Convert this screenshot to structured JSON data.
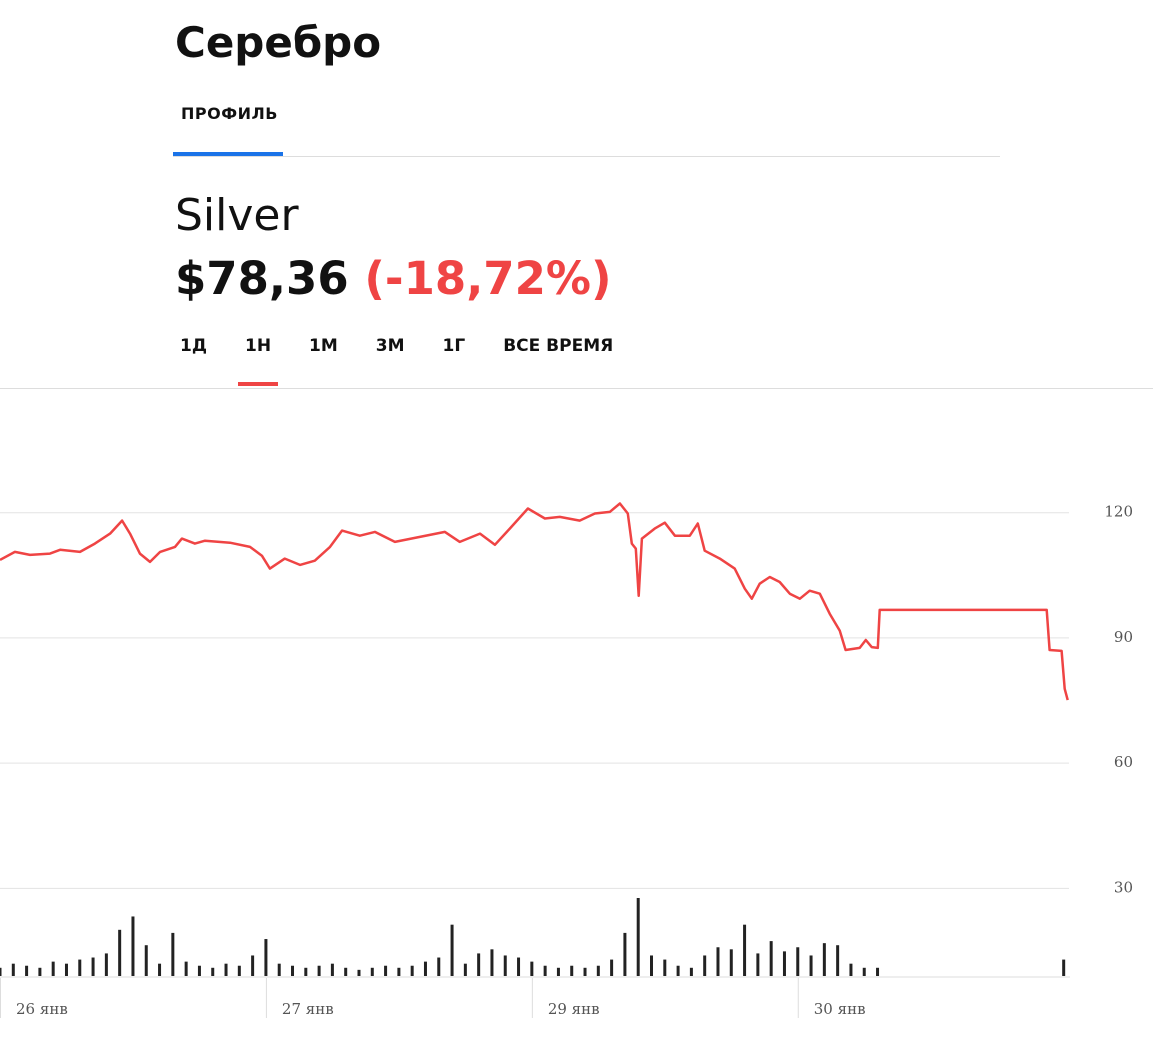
{
  "header": {
    "title": "Серебро",
    "tabs": [
      "ПРОФИЛЬ"
    ]
  },
  "asset": {
    "name": "Silver",
    "price": "$78,36",
    "change": "(-18,72%)"
  },
  "ranges": {
    "items": [
      "1Д",
      "1Н",
      "1М",
      "3М",
      "1Г",
      "ВСЕ ВРЕМЯ"
    ],
    "active": 1
  },
  "chart_data": {
    "type": "line",
    "color": "#ef4444",
    "grid": true,
    "xlim": [
      0,
      4.02
    ],
    "ylim": [
      9,
      147
    ],
    "yticks": [
      30,
      60,
      90,
      120
    ],
    "xticks": [
      {
        "value": 0,
        "label": "26 янв"
      },
      {
        "value": 1,
        "label": "27 янв"
      },
      {
        "value": 2,
        "label": "29 янв"
      },
      {
        "value": 3,
        "label": "30 янв"
      }
    ],
    "x": [
      0,
      0.056,
      0.113,
      0.188,
      0.226,
      0.301,
      0.357,
      0.414,
      0.459,
      0.489,
      0.526,
      0.564,
      0.602,
      0.658,
      0.684,
      0.733,
      0.771,
      0.865,
      0.94,
      0.985,
      1.015,
      1.071,
      1.128,
      1.184,
      1.241,
      1.286,
      1.353,
      1.41,
      1.485,
      1.579,
      1.673,
      1.729,
      1.805,
      1.861,
      1.917,
      1.985,
      2.049,
      2.105,
      2.18,
      2.237,
      2.293,
      2.331,
      2.361,
      2.376,
      2.391,
      2.402,
      2.414,
      2.462,
      2.5,
      2.538,
      2.594,
      2.624,
      2.65,
      2.707,
      2.763,
      2.801,
      2.827,
      2.857,
      2.895,
      2.932,
      2.97,
      3.008,
      3.045,
      3.083,
      3.12,
      3.158,
      3.18,
      3.233,
      3.256,
      3.278,
      3.301,
      3.308,
      3.936,
      3.947,
      3.992,
      4.004,
      4.015
    ],
    "values": [
      108.7,
      110.6,
      109.9,
      110.2,
      111.1,
      110.6,
      112.6,
      115.0,
      118.1,
      115.0,
      110.2,
      108.2,
      110.6,
      111.8,
      113.8,
      112.6,
      113.3,
      112.8,
      111.8,
      109.7,
      106.6,
      109.0,
      107.5,
      108.5,
      111.8,
      115.7,
      114.5,
      115.4,
      113.0,
      114.2,
      115.4,
      113.0,
      115.0,
      112.3,
      116.2,
      121.0,
      118.6,
      119.0,
      118.1,
      119.8,
      120.2,
      122.2,
      119.8,
      112.6,
      111.4,
      100.1,
      113.8,
      116.2,
      117.6,
      114.5,
      114.5,
      117.4,
      110.9,
      109.0,
      106.6,
      101.8,
      99.4,
      103.0,
      104.6,
      103.4,
      100.6,
      99.4,
      101.3,
      100.6,
      95.8,
      91.7,
      87.1,
      87.6,
      89.5,
      87.8,
      87.6,
      96.7,
      96.7,
      87.1,
      86.9,
      77.8,
      75.1
    ],
    "volume_color": "#222",
    "volume": {
      "x": [
        0,
        0.05,
        0.1,
        0.15,
        0.2,
        0.25,
        0.3,
        0.35,
        0.4,
        0.45,
        0.5,
        0.55,
        0.6,
        0.65,
        0.7,
        0.75,
        0.8,
        0.85,
        0.9,
        0.95,
        1,
        1.05,
        1.1,
        1.15,
        1.2,
        1.25,
        1.3,
        1.35,
        1.4,
        1.45,
        1.5,
        1.55,
        1.6,
        1.65,
        1.7,
        1.75,
        1.8,
        1.85,
        1.9,
        1.95,
        2,
        2.05,
        2.1,
        2.15,
        2.2,
        2.25,
        2.3,
        2.35,
        2.4,
        2.45,
        2.5,
        2.55,
        2.6,
        2.65,
        2.7,
        2.75,
        2.8,
        2.85,
        2.9,
        2.95,
        3,
        3.05,
        3.1,
        3.15,
        3.2,
        3.25,
        3.3,
        4.0
      ],
      "values": [
        8,
        12,
        10,
        8,
        14,
        12,
        16,
        18,
        22,
        45,
        58,
        30,
        12,
        42,
        14,
        10,
        8,
        12,
        10,
        20,
        36,
        12,
        10,
        8,
        10,
        12,
        8,
        6,
        8,
        10,
        8,
        10,
        14,
        18,
        50,
        12,
        22,
        26,
        20,
        18,
        14,
        10,
        8,
        10,
        8,
        10,
        16,
        42,
        76,
        20,
        16,
        10,
        8,
        20,
        28,
        26,
        50,
        22,
        34,
        24,
        28,
        20,
        32,
        30,
        12,
        8,
        8,
        16
      ]
    }
  }
}
